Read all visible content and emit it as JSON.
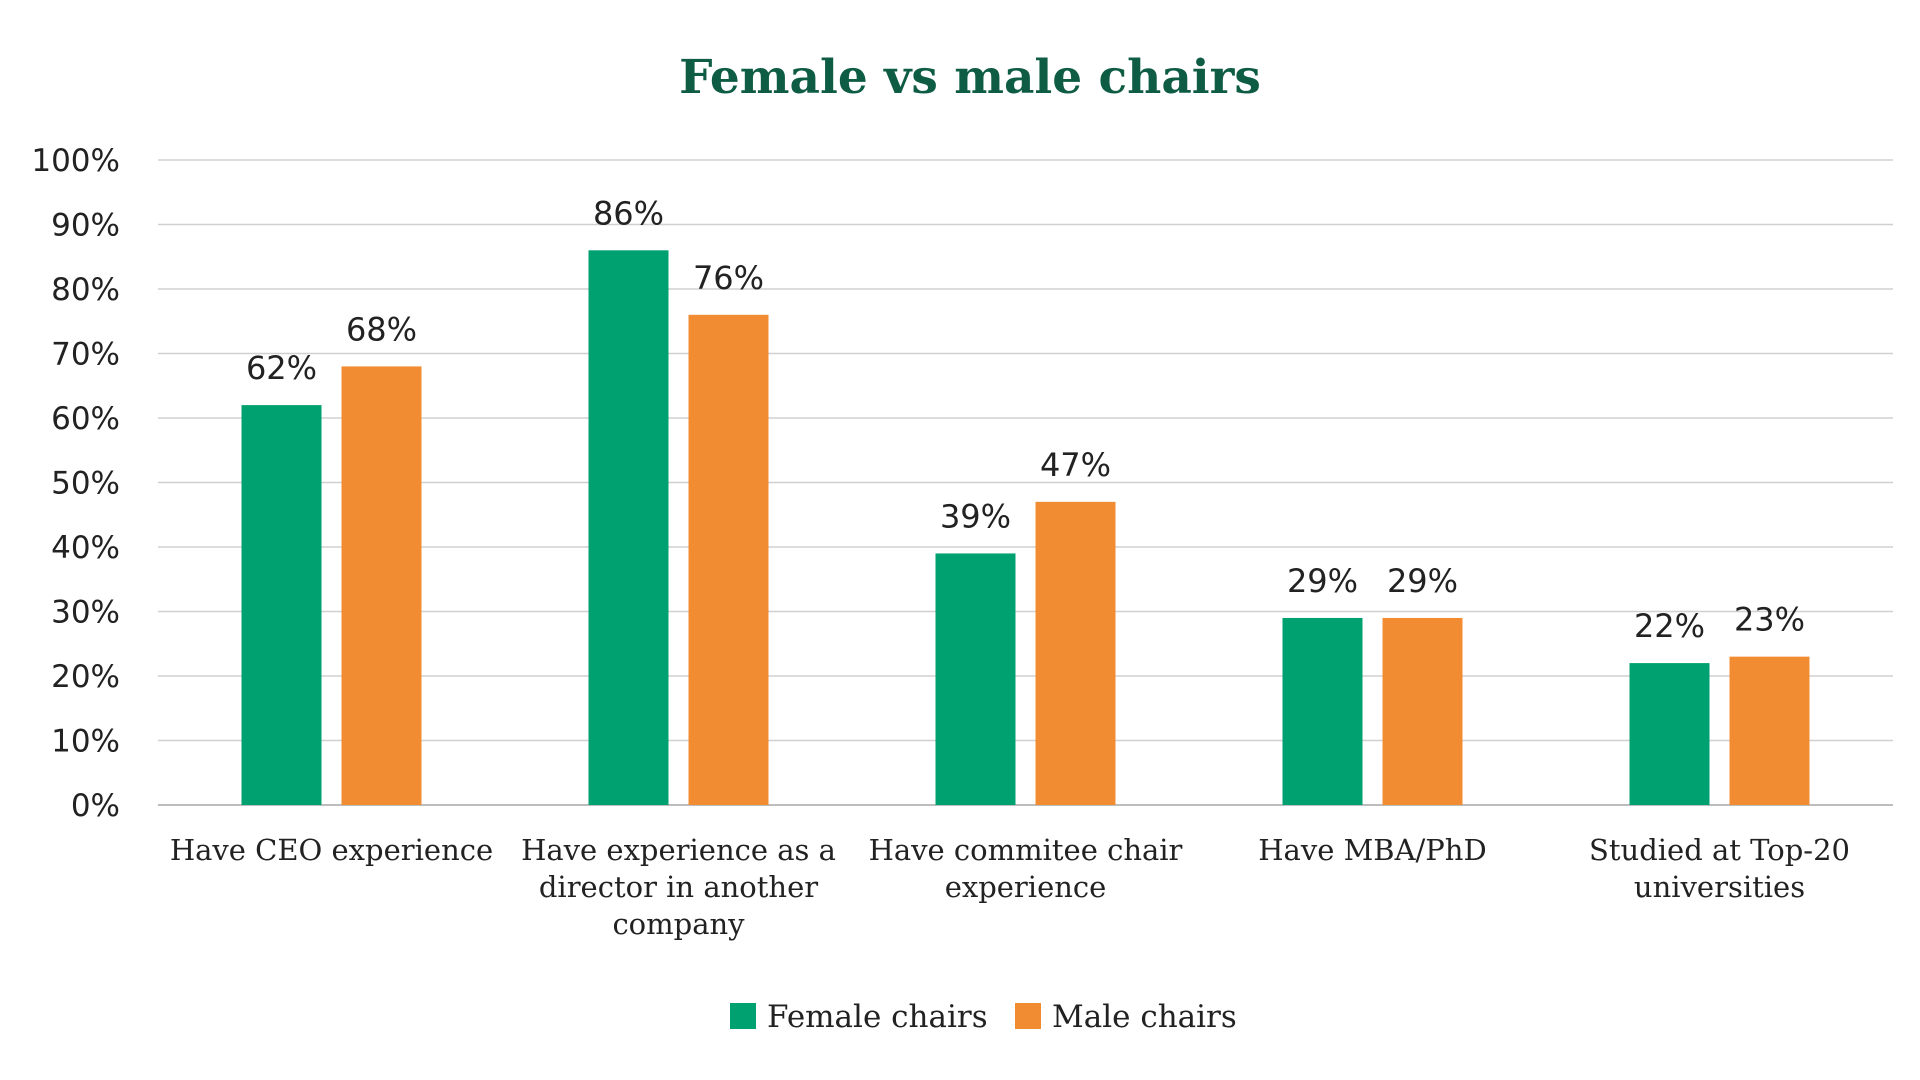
{
  "chart_data": {
    "type": "bar",
    "title": "Female vs male chairs",
    "xlabel": "",
    "ylabel": "",
    "categories": [
      [
        "Have CEO experience"
      ],
      [
        "Have experience as a",
        "director in another",
        "company"
      ],
      [
        "Have commitee chair",
        "experience"
      ],
      [
        "Have MBA/PhD"
      ],
      [
        "Studied at Top-20",
        "universities"
      ]
    ],
    "series": [
      {
        "name": "Female chairs",
        "color": "#00a170",
        "values": [
          62,
          86,
          39,
          29,
          22
        ],
        "labels": [
          "62%",
          "86%",
          "39%",
          "29%",
          "22%"
        ]
      },
      {
        "name": "Male chairs",
        "color": "#f28c33",
        "values": [
          68,
          76,
          47,
          29,
          23
        ],
        "labels": [
          "68%",
          "76%",
          "47%",
          "29%",
          "23%"
        ]
      }
    ],
    "ylim": [
      0,
      100
    ],
    "yticks": [
      "0%",
      "10%",
      "20%",
      "30%",
      "40%",
      "50%",
      "60%",
      "70%",
      "80%",
      "90%",
      "100%"
    ],
    "grid": true,
    "legend": "bottom-center",
    "title_color": "#0f5c45"
  }
}
